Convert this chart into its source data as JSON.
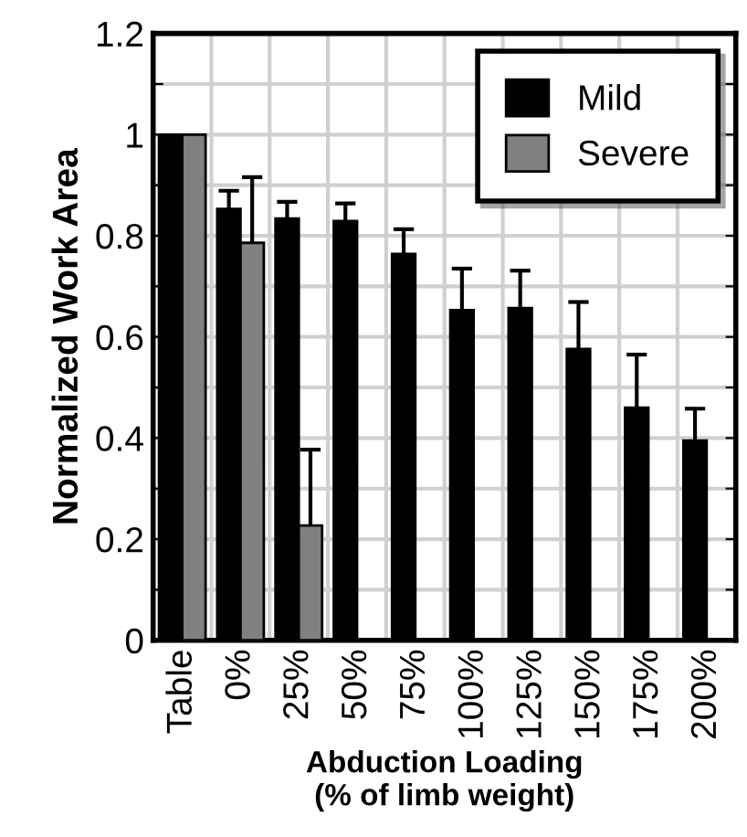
{
  "chart_data": {
    "type": "bar",
    "xlabel": "Abduction Loading\n(% of limb weight)",
    "ylabel": "Normalized Work Area",
    "categories": [
      "Table",
      "0%",
      "25%",
      "50%",
      "75%",
      "100%",
      "125%",
      "150%",
      "175%",
      "200%"
    ],
    "series": [
      {
        "name": "Mild",
        "color": "#000000",
        "values": [
          1,
          0.853,
          0.834,
          0.829,
          0.764,
          0.653,
          0.657,
          0.576,
          0.46,
          0.395
        ],
        "errors": [
          null,
          0.036,
          0.033,
          0.035,
          0.049,
          0.082,
          0.074,
          0.093,
          0.105,
          0.063
        ]
      },
      {
        "name": "Severe",
        "color": "#808080",
        "values": [
          1,
          0.786,
          0.227,
          null,
          null,
          null,
          null,
          null,
          null,
          null
        ],
        "errors": [
          null,
          0.13,
          0.15,
          null,
          null,
          null,
          null,
          null,
          null,
          null
        ]
      }
    ],
    "ylim": [
      0,
      1.2
    ],
    "yticks": [
      0,
      {
        "value": 0.1,
        "label": null
      },
      {
        "value": 0.2,
        "label": "0.2"
      },
      {
        "value": 0.3,
        "label": null
      },
      {
        "value": 0.4,
        "label": "0.4"
      },
      {
        "value": 0.5,
        "label": null
      },
      {
        "value": 0.6,
        "label": "0.6"
      },
      {
        "value": 0.7,
        "label": null
      },
      {
        "value": 0.8,
        "label": "0.8"
      },
      {
        "value": 0.9,
        "label": null
      },
      1,
      {
        "value": 1.1,
        "label": null
      },
      {
        "value": 1.2,
        "label": "1.2"
      }
    ],
    "grid": true,
    "legend": "top right"
  }
}
